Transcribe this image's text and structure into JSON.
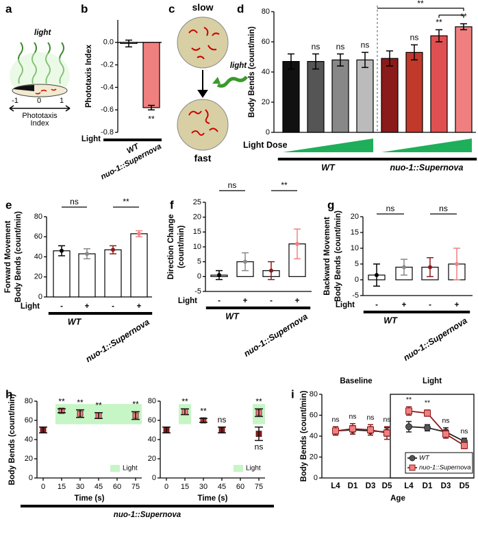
{
  "schematic_a": {
    "panel_label": "a",
    "light": "light",
    "scale": [
      "-1",
      "0",
      "1"
    ],
    "axis_label": [
      "Phototaxis",
      "Index"
    ]
  },
  "schematic_c": {
    "panel_label": "c",
    "top_label": "slow",
    "light": "light",
    "bottom_label": "fast"
  },
  "chart_data": [
    {
      "type": "bar",
      "panel_label": "b",
      "y_label": [
        "Phototaxis Index"
      ],
      "categories": [
        "WT",
        "nuo-1::Supernova"
      ],
      "values": [
        -0.01,
        -0.58
      ],
      "errors": [
        0.03,
        0.02
      ],
      "colors": [
        "#ffffff",
        "#f08080"
      ],
      "significance": [
        null,
        "**"
      ],
      "light_label": "Light",
      "ylim": [
        -0.8,
        0.2
      ],
      "yticks": [
        {
          "value": 0,
          "label": "0.0"
        },
        -0.2,
        -0.4,
        -0.6,
        -0.8
      ]
    },
    {
      "type": "bar",
      "panel_label": "d",
      "y_label": [
        "Body Bends (count/min)"
      ],
      "categories": [
        null,
        null,
        null,
        null,
        null,
        null,
        null,
        null
      ],
      "values": [
        47,
        47,
        48,
        48,
        49,
        53,
        64,
        70
      ],
      "errors": [
        5,
        5,
        4,
        5,
        5,
        5,
        4,
        2
      ],
      "colors": [
        "#111111",
        "#555555",
        "#888888",
        "#bbbbbb",
        "#8b1a1a",
        "#c0392b",
        "#e05050",
        "#f08080"
      ],
      "significance": [
        null,
        "ns",
        "ns",
        "ns",
        null,
        "ns",
        "**",
        "**"
      ],
      "dose_label": "Light Dose",
      "bracket_label": "**",
      "groups": [
        "WT",
        "nuo-1::Supernova"
      ],
      "ylim": [
        0,
        80
      ],
      "yticks": [
        0,
        20,
        40,
        60,
        80
      ]
    },
    {
      "type": "bar",
      "panel_label": "e",
      "y_label": [
        "Forward Movement",
        "Body Bends (count/min)"
      ],
      "values": [
        46,
        43,
        47,
        63
      ],
      "errors": [
        5,
        5,
        4,
        3
      ],
      "point_colors": [
        "#000000",
        "#888888",
        "#8b1a1a",
        "#f08080"
      ],
      "light_label": "Light",
      "light_states": [
        "-",
        "+",
        "-",
        "+"
      ],
      "comparisons": [
        "ns",
        "**"
      ],
      "groups": [
        "WT",
        "nuo-1::Supernova"
      ],
      "ylim": [
        0,
        80
      ],
      "yticks": [
        0,
        20,
        40,
        60,
        80
      ]
    },
    {
      "type": "bar",
      "panel_label": "f",
      "y_label": [
        "Direction Change",
        "(count/min)"
      ],
      "values": [
        0.5,
        5,
        2,
        11
      ],
      "errors": [
        1.5,
        3,
        3,
        5
      ],
      "point_colors": [
        "#000000",
        "#888888",
        "#8b1a1a",
        "#f08080"
      ],
      "light_label": "Light",
      "light_states": [
        "-",
        "+",
        "-",
        "+"
      ],
      "comparisons": [
        "ns",
        "**"
      ],
      "groups": [
        "WT",
        "nuo-1::Supernova"
      ],
      "ylim": [
        -5,
        25
      ],
      "yticks": [
        -5,
        0,
        5,
        10,
        15,
        20,
        25
      ]
    },
    {
      "type": "bar",
      "panel_label": "g",
      "y_label": [
        "Backward Movement",
        "Body Bends (count/min)"
      ],
      "values": [
        1.5,
        4,
        4,
        5
      ],
      "errors": [
        3.5,
        2.5,
        3,
        5
      ],
      "point_colors": [
        "#000000",
        "#888888",
        "#8b1a1a",
        "#f08080"
      ],
      "light_label": "Light",
      "light_states": [
        "-",
        "+",
        "-",
        "+"
      ],
      "comparisons": [
        "ns",
        "ns"
      ],
      "groups": [
        "WT",
        "nuo-1::Supernova"
      ],
      "ylim": [
        -5,
        20
      ],
      "yticks": [
        -5,
        0,
        5,
        10,
        15,
        20
      ]
    },
    {
      "type": "scatter",
      "panel_label": "h",
      "y_label": [
        "Body Bends (count/min)"
      ],
      "x_label": "Time (s)",
      "x": [
        0,
        15,
        30,
        45,
        75
      ],
      "values": [
        50,
        70,
        67,
        65,
        65
      ],
      "errors": [
        3,
        2,
        4,
        3,
        4
      ],
      "colors": [
        "#8b1a1a",
        "#f08080",
        "#f08080",
        "#f08080",
        "#f08080"
      ],
      "significance": [
        null,
        "**",
        "**",
        "**",
        "**"
      ],
      "light_periods": [
        [
          10,
          80
        ]
      ],
      "light_range": [
        56,
        77
      ],
      "legend": "Light",
      "group_label": "nuo-1::Supernova",
      "xlim": [
        -5,
        80
      ],
      "xticks": [
        0,
        15,
        30,
        45,
        60,
        75
      ],
      "ylim": [
        0,
        80
      ],
      "yticks": [
        0,
        20,
        40,
        60,
        80
      ]
    },
    {
      "type": "scatter",
      "x_label": "Time (s)",
      "x": [
        0,
        15,
        30,
        45,
        75,
        75
      ],
      "values": [
        50,
        69,
        60,
        50,
        68,
        46
      ],
      "errors": [
        3,
        3,
        2,
        3,
        4,
        7
      ],
      "colors": [
        "#8b1a1a",
        "#f08080",
        "#c0392b",
        "#8b1a1a",
        "#f08080",
        "#8b1a1a"
      ],
      "significance": [
        null,
        "**",
        "**",
        "ns",
        "**",
        "ns"
      ],
      "light_periods": [
        [
          10,
          20
        ],
        [
          70,
          80
        ]
      ],
      "light_range": [
        56,
        77
      ],
      "legend": "Light",
      "xlim": [
        -5,
        80
      ],
      "xticks": [
        0,
        15,
        30,
        45,
        60,
        75
      ],
      "ylim": [
        0,
        80
      ],
      "yticks": [
        0,
        20,
        40,
        60,
        80
      ]
    },
    {
      "type": "line",
      "panel_label": "i",
      "panel_titles": [
        "Baseline",
        "Light"
      ],
      "categories": [
        "L4",
        "D1",
        "D3",
        "D5",
        "L4",
        "D1",
        "D3",
        "D5"
      ],
      "series": [
        {
          "name": "WT",
          "color": "#555555",
          "line_color": "#222222",
          "marker": "circle",
          "values": [
            45,
            46,
            45,
            44,
            49,
            48,
            44,
            35
          ],
          "errors": [
            4,
            4,
            4,
            4,
            5,
            3,
            4,
            3
          ]
        },
        {
          "name": "nuo-1::Supernova",
          "color": "#f08080",
          "line_color": "#8b1a1a",
          "marker": "square",
          "values": [
            45,
            47,
            46,
            43,
            64,
            62,
            42,
            31
          ],
          "errors": [
            4,
            5,
            5,
            6,
            4,
            3,
            4,
            3
          ]
        }
      ],
      "significance": [
        "ns",
        "ns",
        "ns",
        "ns",
        "**",
        "**",
        "ns",
        "ns"
      ],
      "x_label": "Age",
      "y_label": [
        "Body Bends (count/min)"
      ],
      "ylim": [
        0,
        80
      ],
      "yticks": [
        0,
        20,
        40,
        60,
        80
      ],
      "legend": "lower right"
    }
  ]
}
